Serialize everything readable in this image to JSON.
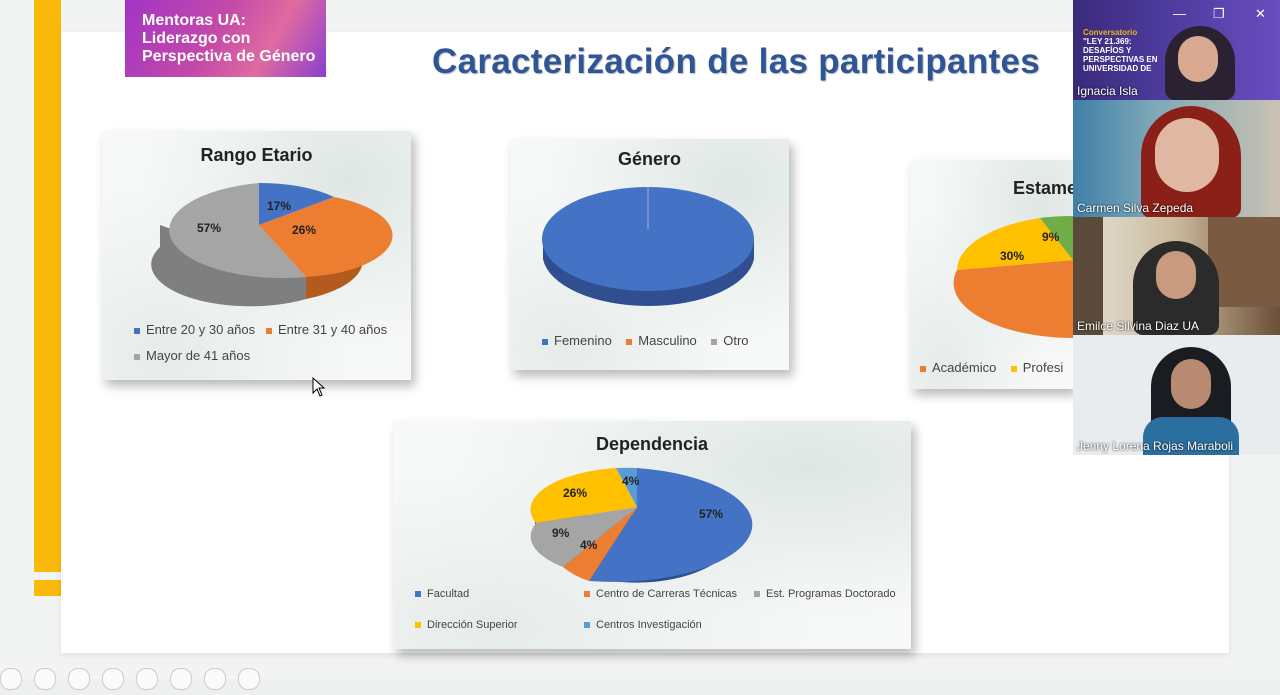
{
  "logo": {
    "line1": "Mentoras UA:",
    "line2": "Liderazgo con",
    "line3": "Perspectiva de Género"
  },
  "slide_title": "Caracterización de las participantes",
  "charts": {
    "rango": {
      "title": "Rango Etario",
      "slices": [
        "17%",
        "26%",
        "57%"
      ],
      "legend": [
        "Entre 20 y 30 años",
        "Entre 31 y 40 años",
        "Mayor de 41 años"
      ]
    },
    "genero": {
      "title": "Género",
      "legend": [
        "Femenino",
        "Masculino",
        "Otro"
      ]
    },
    "estamento": {
      "title": "Estame",
      "slices": [
        "9%",
        "30%"
      ],
      "legend": [
        "Académico",
        "Profesi"
      ]
    },
    "dependencia": {
      "title": "Dependencia",
      "slices": [
        "57%",
        "4%",
        "9%",
        "26%",
        "4%"
      ],
      "legend": [
        "Facultad",
        "Centro de Carreras Técnicas",
        "Est. Programas Doctorado",
        "Dirección Superior",
        "Centros Investigación"
      ]
    }
  },
  "chart_data": [
    {
      "type": "pie",
      "title": "Rango Etario",
      "categories": [
        "Entre 20 y 30 años",
        "Entre 31 y 40 años",
        "Mayor de 41 años"
      ],
      "values": [
        17,
        26,
        57
      ]
    },
    {
      "type": "pie",
      "title": "Género",
      "categories": [
        "Femenino",
        "Masculino",
        "Otro"
      ],
      "values": [
        100,
        0,
        0
      ]
    },
    {
      "type": "pie",
      "title": "Dependencia",
      "categories": [
        "Facultad",
        "Centro de Carreras Técnicas",
        "Est. Programas Doctorado",
        "Dirección Superior",
        "Centros Investigación"
      ],
      "values": [
        57,
        4,
        9,
        26,
        4
      ]
    }
  ],
  "video": {
    "tile1_banner": [
      "Conversatorio",
      "\"LEY 21.369:",
      "DESAFÍOS Y",
      "PERSPECTIVAS EN",
      "UNIVERSIDAD DE"
    ],
    "participants": [
      "Ignacia Isla",
      "Carmen Silva Zepeda",
      "Emilce Silvina Diaz UA",
      "Jenny Lorena Rojas Maraboli"
    ]
  },
  "colors": {
    "blue": "#4472c4",
    "orange": "#ed7d31",
    "gray": "#a5a5a5",
    "yellow": "#ffc000",
    "green": "#70ad47",
    "title_blue": "#2f5597",
    "accent_yellow": "#f9b90a"
  }
}
